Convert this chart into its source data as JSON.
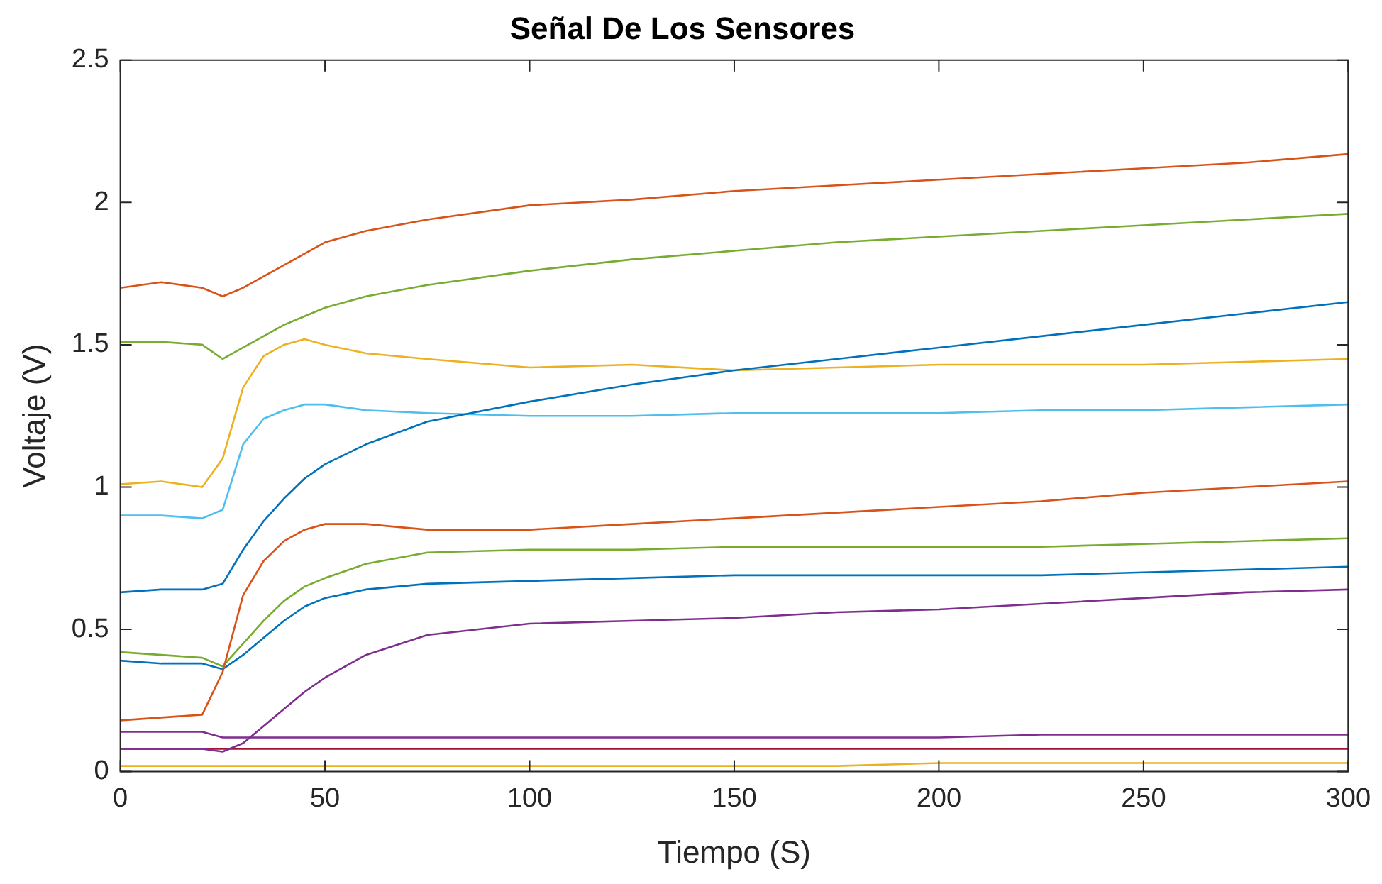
{
  "chart_data": {
    "type": "line",
    "title": "Señal De Los Sensores",
    "xlabel": "Tiempo (S)",
    "ylabel": "Voltaje (V)",
    "x": [
      0,
      10,
      20,
      25,
      30,
      35,
      40,
      45,
      50,
      60,
      75,
      100,
      125,
      150,
      175,
      200,
      225,
      250,
      275,
      300
    ],
    "xlim": [
      0,
      300
    ],
    "xticks": [
      0,
      50,
      100,
      150,
      200,
      250,
      300
    ],
    "ylim": [
      0,
      2.5
    ],
    "yticks": [
      0,
      0.5,
      1,
      1.5,
      2,
      2.5
    ],
    "grid": false,
    "legend": false,
    "marker": "none",
    "line_style": "solid",
    "series": [
      {
        "color": "#d95319",
        "values": [
          1.7,
          1.72,
          1.7,
          1.67,
          1.7,
          1.74,
          1.78,
          1.82,
          1.86,
          1.9,
          1.94,
          1.99,
          2.01,
          2.04,
          2.06,
          2.08,
          2.1,
          2.12,
          2.14,
          2.17
        ]
      },
      {
        "color": "#77ac30",
        "values": [
          1.51,
          1.51,
          1.5,
          1.45,
          1.49,
          1.53,
          1.57,
          1.6,
          1.63,
          1.67,
          1.71,
          1.76,
          1.8,
          1.83,
          1.86,
          1.88,
          1.9,
          1.92,
          1.94,
          1.96
        ]
      },
      {
        "color": "#0072bd",
        "values": [
          0.63,
          0.64,
          0.64,
          0.66,
          0.78,
          0.88,
          0.96,
          1.03,
          1.08,
          1.15,
          1.23,
          1.3,
          1.36,
          1.41,
          1.45,
          1.49,
          1.53,
          1.57,
          1.61,
          1.65
        ]
      },
      {
        "color": "#edb120",
        "values": [
          1.01,
          1.02,
          1.0,
          1.1,
          1.35,
          1.46,
          1.5,
          1.52,
          1.5,
          1.47,
          1.45,
          1.42,
          1.43,
          1.41,
          1.42,
          1.43,
          1.43,
          1.43,
          1.44,
          1.45
        ]
      },
      {
        "color": "#4dbeee",
        "values": [
          0.9,
          0.9,
          0.89,
          0.92,
          1.15,
          1.24,
          1.27,
          1.29,
          1.29,
          1.27,
          1.26,
          1.25,
          1.25,
          1.26,
          1.26,
          1.26,
          1.27,
          1.27,
          1.28,
          1.29
        ]
      },
      {
        "color": "#d95319",
        "values": [
          0.18,
          0.19,
          0.2,
          0.35,
          0.62,
          0.74,
          0.81,
          0.85,
          0.87,
          0.87,
          0.85,
          0.85,
          0.87,
          0.89,
          0.91,
          0.93,
          0.95,
          0.98,
          1.0,
          1.02
        ]
      },
      {
        "color": "#77ac30",
        "values": [
          0.42,
          0.41,
          0.4,
          0.37,
          0.45,
          0.53,
          0.6,
          0.65,
          0.68,
          0.73,
          0.77,
          0.78,
          0.78,
          0.79,
          0.79,
          0.79,
          0.79,
          0.8,
          0.81,
          0.82
        ]
      },
      {
        "color": "#0072bd",
        "values": [
          0.39,
          0.38,
          0.38,
          0.36,
          0.41,
          0.47,
          0.53,
          0.58,
          0.61,
          0.64,
          0.66,
          0.67,
          0.68,
          0.69,
          0.69,
          0.69,
          0.69,
          0.7,
          0.71,
          0.72
        ]
      },
      {
        "color": "#7e2f8e",
        "values": [
          0.08,
          0.08,
          0.08,
          0.07,
          0.1,
          0.16,
          0.22,
          0.28,
          0.33,
          0.41,
          0.48,
          0.52,
          0.53,
          0.54,
          0.56,
          0.57,
          0.59,
          0.61,
          0.63,
          0.64
        ]
      },
      {
        "color": "#7e2f8e",
        "values": [
          0.14,
          0.14,
          0.14,
          0.12,
          0.12,
          0.12,
          0.12,
          0.12,
          0.12,
          0.12,
          0.12,
          0.12,
          0.12,
          0.12,
          0.12,
          0.12,
          0.13,
          0.13,
          0.13,
          0.13
        ]
      },
      {
        "color": "#a2142f",
        "values": [
          0.08,
          0.08,
          0.08,
          0.08,
          0.08,
          0.08,
          0.08,
          0.08,
          0.08,
          0.08,
          0.08,
          0.08,
          0.08,
          0.08,
          0.08,
          0.08,
          0.08,
          0.08,
          0.08,
          0.08
        ]
      },
      {
        "color": "#edb120",
        "values": [
          0.02,
          0.02,
          0.02,
          0.02,
          0.02,
          0.02,
          0.02,
          0.02,
          0.02,
          0.02,
          0.02,
          0.02,
          0.02,
          0.02,
          0.02,
          0.03,
          0.03,
          0.03,
          0.03,
          0.03
        ]
      }
    ]
  }
}
